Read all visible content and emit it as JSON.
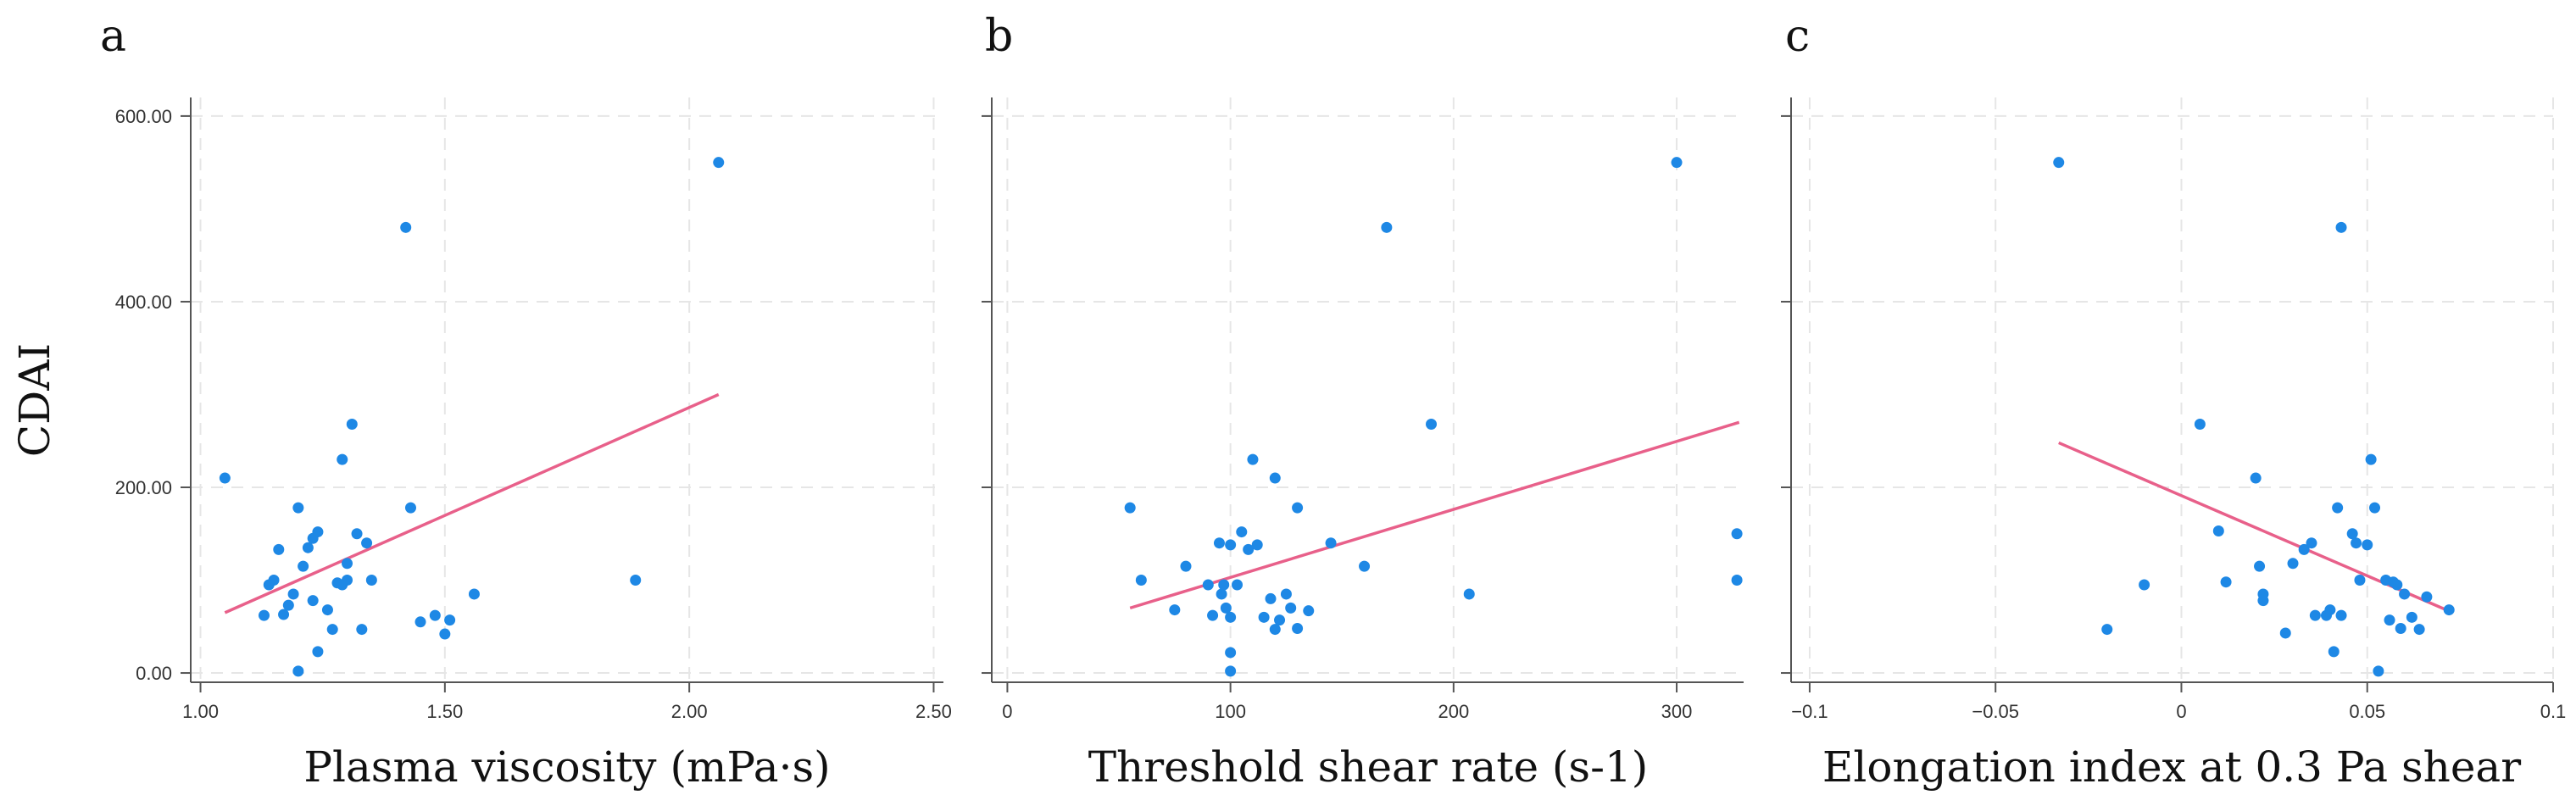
{
  "colors": {
    "point": "#1e88e5",
    "fit_line": "#e8608a",
    "grid": "#e6e6e6",
    "axis": "#555555"
  },
  "y_axis": {
    "label": "CDAI",
    "ylim": [
      -10,
      620
    ],
    "ticks": [
      0,
      200,
      400,
      600
    ],
    "tick_labels": [
      "0.00",
      "200.00",
      "400.00",
      "600.00"
    ]
  },
  "chart_data": [
    {
      "type": "scatter",
      "panel": "a",
      "xlabel": "Plasma viscosity (mPa·s)",
      "ylabel": "CDAI",
      "xlim": [
        0.98,
        2.52
      ],
      "xticks": [
        1.0,
        1.5,
        2.0,
        2.5
      ],
      "xtick_labels": [
        "1.00",
        "1.50",
        "2.00",
        "2.50"
      ],
      "fit_line": [
        [
          1.05,
          65
        ],
        [
          2.06,
          300
        ]
      ],
      "points": [
        [
          1.05,
          210
        ],
        [
          1.13,
          62
        ],
        [
          1.14,
          95
        ],
        [
          1.15,
          100
        ],
        [
          1.16,
          133
        ],
        [
          1.17,
          63
        ],
        [
          1.18,
          73
        ],
        [
          1.19,
          85
        ],
        [
          1.2,
          178
        ],
        [
          1.2,
          2
        ],
        [
          1.21,
          115
        ],
        [
          1.22,
          135
        ],
        [
          1.23,
          78
        ],
        [
          1.23,
          145
        ],
        [
          1.24,
          152
        ],
        [
          1.24,
          23
        ],
        [
          1.26,
          68
        ],
        [
          1.27,
          47
        ],
        [
          1.28,
          97
        ],
        [
          1.29,
          95
        ],
        [
          1.29,
          230
        ],
        [
          1.3,
          118
        ],
        [
          1.3,
          100
        ],
        [
          1.31,
          268
        ],
        [
          1.32,
          150
        ],
        [
          1.33,
          47
        ],
        [
          1.34,
          140
        ],
        [
          1.35,
          100
        ],
        [
          1.42,
          480
        ],
        [
          1.43,
          178
        ],
        [
          1.45,
          55
        ],
        [
          1.48,
          62
        ],
        [
          1.5,
          42
        ],
        [
          1.51,
          57
        ],
        [
          1.56,
          85
        ],
        [
          1.89,
          100
        ],
        [
          2.06,
          550
        ]
      ]
    },
    {
      "type": "scatter",
      "panel": "b",
      "xlabel": "Threshold shear rate (s-1)",
      "ylabel": "",
      "xlim": [
        -7,
        330
      ],
      "xticks": [
        0,
        100,
        200,
        300
      ],
      "xtick_labels": [
        "0",
        "100",
        "200",
        "300"
      ],
      "fit_line": [
        [
          55,
          70
        ],
        [
          328,
          270
        ]
      ],
      "points": [
        [
          55,
          178
        ],
        [
          60,
          100
        ],
        [
          75,
          68
        ],
        [
          80,
          115
        ],
        [
          90,
          95
        ],
        [
          92,
          62
        ],
        [
          95,
          140
        ],
        [
          96,
          85
        ],
        [
          97,
          95
        ],
        [
          98,
          70
        ],
        [
          100,
          138
        ],
        [
          100,
          60
        ],
        [
          100,
          22
        ],
        [
          100,
          2
        ],
        [
          103,
          95
        ],
        [
          105,
          152
        ],
        [
          108,
          133
        ],
        [
          110,
          230
        ],
        [
          112,
          138
        ],
        [
          115,
          60
        ],
        [
          118,
          80
        ],
        [
          120,
          210
        ],
        [
          120,
          47
        ],
        [
          122,
          57
        ],
        [
          125,
          85
        ],
        [
          127,
          70
        ],
        [
          130,
          48
        ],
        [
          130,
          178
        ],
        [
          135,
          67
        ],
        [
          145,
          140
        ],
        [
          160,
          115
        ],
        [
          170,
          480
        ],
        [
          190,
          268
        ],
        [
          207,
          85
        ],
        [
          300,
          550
        ],
        [
          327,
          150
        ],
        [
          327,
          100
        ]
      ]
    },
    {
      "type": "scatter",
      "panel": "c",
      "xlabel": "Elongation index at 0.3 Pa shear",
      "ylabel": "",
      "xlim": [
        -0.105,
        0.1
      ],
      "xticks": [
        -0.1,
        -0.05,
        0,
        0.05,
        0.1
      ],
      "xtick_labels": [
        "−0.1",
        "−0.05",
        "0",
        "0.05",
        "0.1"
      ],
      "fit_line": [
        [
          -0.033,
          248
        ],
        [
          0.073,
          65
        ]
      ],
      "points": [
        [
          -0.033,
          550
        ],
        [
          -0.02,
          47
        ],
        [
          -0.01,
          95
        ],
        [
          0.005,
          268
        ],
        [
          0.01,
          153
        ],
        [
          0.012,
          98
        ],
        [
          0.02,
          210
        ],
        [
          0.021,
          115
        ],
        [
          0.022,
          85
        ],
        [
          0.022,
          78
        ],
        [
          0.028,
          43
        ],
        [
          0.03,
          118
        ],
        [
          0.033,
          133
        ],
        [
          0.035,
          140
        ],
        [
          0.036,
          62
        ],
        [
          0.039,
          62
        ],
        [
          0.04,
          68
        ],
        [
          0.041,
          23
        ],
        [
          0.042,
          178
        ],
        [
          0.043,
          480
        ],
        [
          0.043,
          62
        ],
        [
          0.046,
          150
        ],
        [
          0.047,
          140
        ],
        [
          0.048,
          100
        ],
        [
          0.05,
          138
        ],
        [
          0.051,
          230
        ],
        [
          0.052,
          178
        ],
        [
          0.053,
          2
        ],
        [
          0.055,
          100
        ],
        [
          0.056,
          57
        ],
        [
          0.057,
          98
        ],
        [
          0.058,
          95
        ],
        [
          0.059,
          48
        ],
        [
          0.06,
          85
        ],
        [
          0.062,
          60
        ],
        [
          0.064,
          47
        ],
        [
          0.066,
          82
        ],
        [
          0.072,
          68
        ]
      ]
    }
  ]
}
